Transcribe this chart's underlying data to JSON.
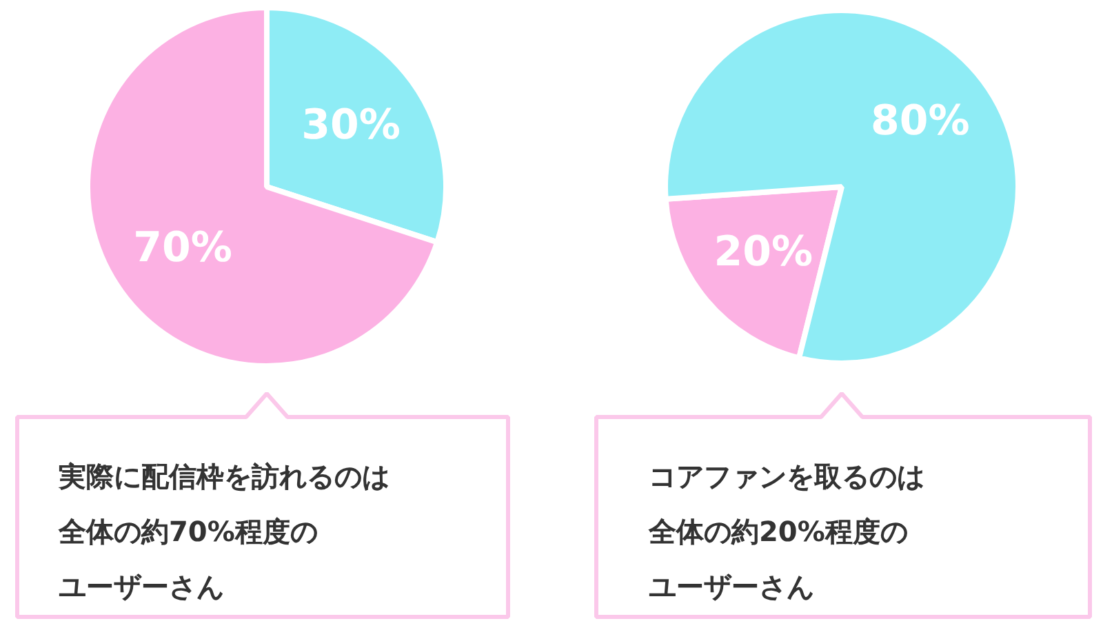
{
  "chart_data": [
    {
      "type": "pie",
      "categories": [
        null,
        null
      ],
      "values": [
        30,
        70
      ],
      "colors": [
        "#8eecf5",
        "#fcb1e3"
      ],
      "value_labels": [
        "30%",
        "70%"
      ],
      "annotations": [
        "実際に配信枠を訪れるのは",
        "全体の約70%程度の",
        "ユーザーさん"
      ]
    },
    {
      "type": "pie",
      "categories": [
        null,
        null
      ],
      "values": [
        20,
        80
      ],
      "colors": [
        "#fcb1e3",
        "#8eecf5"
      ],
      "value_labels": [
        "20%",
        "80%"
      ],
      "annotations": [
        "コアファンを取るのは",
        "全体の約20%程度の",
        "ユーザーさん"
      ]
    }
  ]
}
